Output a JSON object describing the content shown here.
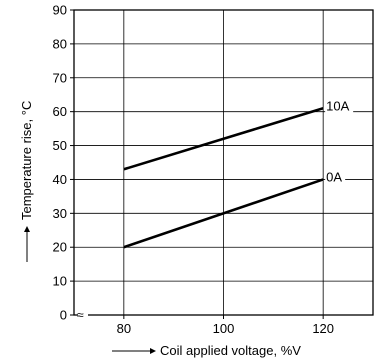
{
  "chart_data": {
    "type": "line",
    "xlabel": "Coil applied voltage, %V",
    "ylabel": "Temperature rise, °C",
    "xlim": [
      70,
      130
    ],
    "ylim": [
      0,
      90
    ],
    "x_ticks": [
      80,
      100,
      120
    ],
    "y_ticks": [
      0,
      10,
      20,
      30,
      40,
      50,
      60,
      70,
      80,
      90
    ],
    "x_tick_labels": [
      "80",
      "100",
      "120"
    ],
    "y_tick_labels": [
      "0",
      "10",
      "20",
      "30",
      "40",
      "50",
      "60",
      "70",
      "80",
      "90"
    ],
    "axis_break_mark": "≈",
    "grid": true,
    "series": [
      {
        "name": "10A",
        "x": [
          80,
          120
        ],
        "y": [
          43,
          61
        ]
      },
      {
        "name": "0A",
        "x": [
          80,
          120
        ],
        "y": [
          20,
          40
        ]
      }
    ],
    "line_color": "#000000"
  }
}
